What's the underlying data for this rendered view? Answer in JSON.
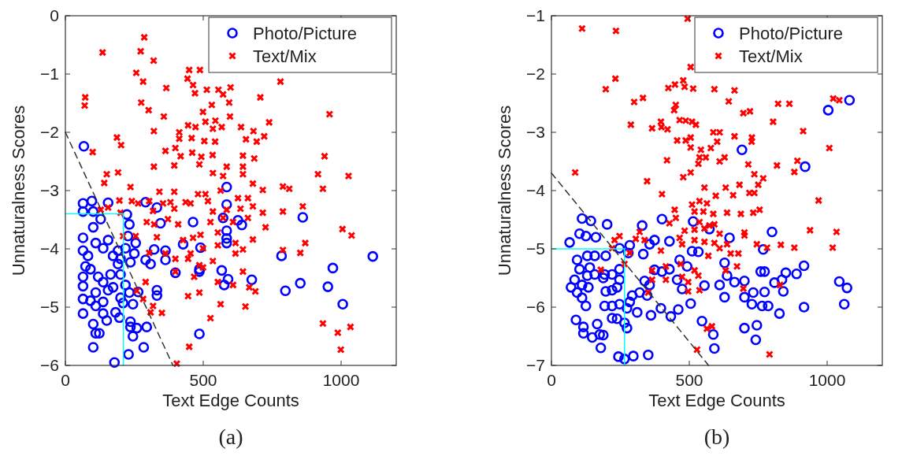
{
  "chart_data": [
    {
      "type": "scatter",
      "xlabel": "Text Edge Counts",
      "ylabel": "Unnaturalness Scores",
      "xlim": [
        0,
        1200
      ],
      "ylim": [
        -6,
        0
      ],
      "xticks": [
        0,
        500,
        1000
      ],
      "yticks": [
        -6,
        -5,
        -4,
        -3,
        -2,
        -1,
        0
      ],
      "legend": "top right",
      "annotations": [
        "(a)"
      ],
      "series": [
        {
          "name": "Photo/Picture",
          "color": "#0000ff",
          "marker": "circle",
          "x": [
            67,
            64,
            96,
            155,
            64,
            101,
            128,
            223,
            232,
            291,
            332,
            345,
            463,
            585,
            585,
            572,
            626,
            640,
            585,
            585,
            585,
            427,
            490,
            322,
            363,
            363,
            291,
            309,
            399,
            486,
            486,
            567,
            590,
            576,
            676,
            784,
            861,
            1115,
            970,
            852,
            798,
            952,
            1006,
            486,
            332,
            332,
            264,
            245,
            232,
            218,
            64,
            64,
            64,
            64,
            64,
            64,
            101,
            110,
            82,
            137,
            155,
            173,
            191,
            191,
            200,
            164,
            137,
            110,
            91,
            110,
            137,
            150,
            182,
            196,
            101,
            110,
            123,
            101,
            178,
            229,
            284,
            236,
            236,
            259,
            295,
            245,
            137,
            209,
            200,
            255,
            250,
            236,
            200,
            155,
            173,
            91,
            119,
            73,
            218,
            227
          ],
          "values": [
            -2.24,
            -3.22,
            -3.18,
            -3.21,
            -3.36,
            -3.36,
            -3.49,
            -3.41,
            -3.58,
            -3.2,
            -3.29,
            -3.56,
            -3.54,
            -2.94,
            -3.24,
            -3.47,
            -3.51,
            -3.59,
            -3.69,
            -3.82,
            -3.9,
            -3.92,
            -3.98,
            -4.01,
            -4.03,
            -4.19,
            -4.19,
            -4.26,
            -4.41,
            -4.35,
            -4.39,
            -4.37,
            -4.52,
            -4.62,
            -4.53,
            -4.12,
            -3.46,
            -4.13,
            -4.33,
            -4.59,
            -4.72,
            -4.65,
            -4.95,
            -5.46,
            -4.71,
            -4.8,
            -4.74,
            -4.95,
            -4.75,
            -4.62,
            -3.81,
            -4.03,
            -4.48,
            -4.64,
            -4.86,
            -5.11,
            -3.63,
            -3.9,
            -4.12,
            -3.99,
            -3.85,
            -4.12,
            -4.03,
            -4.26,
            -4.44,
            -4.44,
            -4.57,
            -4.75,
            -4.89,
            -4.98,
            -5.11,
            -5.23,
            -5.09,
            -5.18,
            -5.29,
            -5.45,
            -5.45,
            -5.69,
            -5.95,
            -5.81,
            -5.69,
            -5.25,
            -5.34,
            -5.36,
            -5.34,
            -5.5,
            -4.91,
            -4.93,
            -4.84,
            -3.9,
            -4.08,
            -4.23,
            -4.17,
            -4.71,
            -4.66,
            -4.35,
            -4.48,
            -4.3,
            -3.99,
            -3.78
          ]
        },
        {
          "name": "Text/Mix",
          "color": "#ff0000",
          "marker": "cross",
          "x": [
            286,
            135,
            273,
            320,
            257,
            282,
            449,
            488,
            443,
            463,
            470,
            513,
            555,
            572,
            599,
            366,
            72,
            70,
            275,
            302,
            357,
            499,
            531,
            594,
            597,
            707,
            780,
            958,
            739,
            321,
            413,
            445,
            472,
            508,
            535,
            544,
            567,
            637,
            682,
            721,
            655,
            694,
            187,
            202,
            99,
            413,
            458,
            504,
            543,
            363,
            399,
            418,
            460,
            493,
            534,
            644,
            685,
            940,
            321,
            395,
            486,
            585,
            644,
            150,
            191,
            141,
            236,
            196,
            241,
            264,
            128,
            155,
            200,
            304,
            341,
            395,
            318,
            354,
            381,
            395,
            295,
            322,
            372,
            409,
            436,
            454,
            481,
            508,
            517,
            535,
            563,
            572,
            535,
            626,
            644,
            680,
            716,
            662,
            680,
            716,
            662,
            726,
            789,
            812,
            789,
            916,
            934,
            1027,
            861,
            1005,
            1038,
            870,
            789,
            852,
            680,
            644,
            617,
            617,
            553,
            535,
            490,
            499,
            463,
            454,
            427,
            399,
            363,
            332,
            304,
            209,
            255,
            445,
            486,
            499,
            399,
            467,
            291,
            259,
            282,
            318,
            309,
            350,
            445,
            486,
            553,
            608,
            644,
            667,
            689,
            563,
            653,
            526,
            449,
            404,
            934,
            988,
            1034,
            999,
            572,
            608,
            635,
            526,
            553,
            585
          ],
          "values": [
            -0.37,
            -0.63,
            -0.61,
            -0.77,
            -0.98,
            -1.13,
            -0.93,
            -0.93,
            -1.08,
            -1.19,
            -1.33,
            -1.27,
            -1.27,
            -1.35,
            -1.23,
            -1.24,
            -1.4,
            -1.54,
            -1.49,
            -1.62,
            -1.73,
            -1.65,
            -1.53,
            -1.49,
            -1.73,
            -1.4,
            -1.13,
            -1.69,
            -1.83,
            -1.98,
            -2,
            -1.88,
            -1.91,
            -1.82,
            -1.94,
            -1.8,
            -1.91,
            -1.91,
            -1.98,
            -2.07,
            -2.12,
            -2.16,
            -2.09,
            -2.22,
            -2.34,
            -2.11,
            -2.1,
            -2.15,
            -2.16,
            -2.32,
            -2.27,
            -2.41,
            -2.35,
            -2.42,
            -2.39,
            -2.4,
            -2.45,
            -2.41,
            -2.59,
            -2.57,
            -2.55,
            -2.59,
            -2.59,
            -2.72,
            -2.69,
            -2.87,
            -2.94,
            -3.17,
            -3.18,
            -3.22,
            -3.33,
            -3.29,
            -3.38,
            -3.18,
            -3.02,
            -3.02,
            -3.35,
            -3.22,
            -3.2,
            -3.31,
            -3.54,
            -3.58,
            -3.49,
            -3.58,
            -3.2,
            -3.22,
            -3.06,
            -3.06,
            -3.18,
            -3.36,
            -3,
            -2.75,
            -2.7,
            -3.13,
            -2.72,
            -2.88,
            -2.99,
            -3.13,
            -3.27,
            -3.38,
            -3.47,
            -3.63,
            -2.93,
            -2.97,
            -3.36,
            -2.72,
            -2.97,
            -2.75,
            -3.27,
            -3.66,
            -3.77,
            -3.9,
            -4.02,
            -4.07,
            -3.84,
            -4.01,
            -3.9,
            -4.08,
            -3.94,
            -4.21,
            -3.76,
            -3.99,
            -3.81,
            -4.08,
            -3.85,
            -4.17,
            -4.08,
            -3.8,
            -4.07,
            -3.78,
            -3.78,
            -4.17,
            -4.28,
            -4.32,
            -4.39,
            -4.48,
            -4.57,
            -4.72,
            -4.86,
            -4.98,
            -5.09,
            -5.1,
            -4.81,
            -4.75,
            -4.57,
            -4.62,
            -4.39,
            -4.66,
            -4.73,
            -4.95,
            -4.99,
            -5.19,
            -5.68,
            -5.97,
            -5.28,
            -5.44,
            -5.34,
            -5.73,
            -3.47,
            -3.54,
            -3.31,
            -3.54,
            -3.72,
            -3.33
          ]
        },
        {
          "type": "line",
          "color": "#00ffff",
          "line_style": "solid",
          "marker": "none",
          "x": [
            0,
            210,
            210
          ],
          "values": [
            -3.4,
            -3.4,
            -6
          ]
        },
        {
          "type": "line",
          "color": "#333333",
          "line_style": "dashed",
          "marker": "none",
          "x": [
            0,
            390
          ],
          "values": [
            -2,
            -6
          ]
        }
      ]
    },
    {
      "type": "scatter",
      "xlabel": "Text Edge Counts",
      "ylabel": "Unnaturalness Scores",
      "xlim": [
        0,
        1200
      ],
      "ylim": [
        -7,
        -1
      ],
      "xticks": [
        0,
        500,
        1000
      ],
      "yticks": [
        -7,
        -6,
        -5,
        -4,
        -3,
        -2,
        -1
      ],
      "legend": "top right",
      "annotations": [
        "(b)"
      ],
      "series": [
        {
          "name": "Photo/Picture",
          "color": "#0000ff",
          "marker": "circle",
          "x": [
            691,
            1004,
            1081,
            920,
            111,
            143,
            202,
            161,
            102,
            125,
            66,
            329,
            401,
            514,
            247,
            284,
            279,
            333,
            356,
            374,
            428,
            510,
            533,
            573,
            646,
            768,
            800,
            465,
            492,
            628,
            637,
            664,
            700,
            759,
            773,
            850,
            889,
            916,
            809,
            836,
            841,
            1044,
            1072,
            1062,
            916,
            827,
            764,
            786,
            727,
            773,
            732,
            700,
            610,
            628,
            555,
            505,
            474,
            456,
            428,
            401,
            374,
            338,
            356,
            347,
            320,
            293,
            284,
            311,
            274,
            247,
            220,
            193,
            197,
            220,
            238,
            188,
            157,
            130,
            139,
            102,
            93,
            84,
            93,
            71,
            111,
            125,
            89,
            116,
            116,
            148,
            175,
            188,
            179,
            166,
            220,
            238,
            265,
            274,
            243,
            265,
            297,
            351,
            361,
            397,
            433,
            460,
            546,
            587,
            591,
            700,
            745,
            741,
            157,
            130,
            197,
            247,
            111,
            134,
            193,
            247,
            220
          ],
          "values": [
            -3.3,
            -2.62,
            -2.45,
            -3.59,
            -4.48,
            -4.52,
            -4.58,
            -4.8,
            -4.74,
            -4.78,
            -4.89,
            -4.6,
            -4.49,
            -4.53,
            -4.99,
            -4.94,
            -5.07,
            -5.09,
            -4.92,
            -4.85,
            -4.87,
            -5.04,
            -5.05,
            -4.66,
            -4.81,
            -5.01,
            -4.71,
            -5.19,
            -5.3,
            -5.24,
            -5.46,
            -5.57,
            -5.55,
            -5.39,
            -5.39,
            -5.41,
            -5.43,
            -5.29,
            -5.58,
            -5.53,
            -5.73,
            -5.56,
            -5.67,
            -5.95,
            -6,
            -6.11,
            -5.98,
            -5.98,
            -5.95,
            -5.74,
            -5.75,
            -5.83,
            -5.62,
            -5.83,
            -5.63,
            -5.94,
            -5.69,
            -5.53,
            -5.35,
            -5.39,
            -5.36,
            -5.55,
            -5.62,
            -5.8,
            -5.75,
            -5.8,
            -5.91,
            -6.09,
            -6.02,
            -5.95,
            -5.98,
            -5.98,
            -5.73,
            -5.71,
            -5.66,
            -5.5,
            -5.44,
            -5.46,
            -5.32,
            -5.35,
            -5.19,
            -5.53,
            -5.75,
            -5.66,
            -5.84,
            -5.98,
            -6.22,
            -6.34,
            -6.45,
            -6.52,
            -6.47,
            -6.48,
            -6.7,
            -6.29,
            -6.19,
            -6.2,
            -6.27,
            -6.36,
            -6.85,
            -6.89,
            -6.84,
            -6.82,
            -6.14,
            -6.02,
            -6.16,
            -6.04,
            -6.24,
            -6.47,
            -6.71,
            -6.36,
            -6.31,
            -6.56,
            -5.12,
            -5.12,
            -5.12,
            -5.35,
            -5.62,
            -5.66,
            -5.44,
            -5.53,
            -5.44
          ]
        },
        {
          "name": "Text/Mix",
          "color": "#ff0000",
          "marker": "cross",
          "x": [
            111,
            234,
            494,
            197,
            232,
            300,
            332,
            424,
            448,
            478,
            483,
            514,
            505,
            591,
            664,
            643,
            451,
            445,
            288,
            365,
            397,
            399,
            421,
            465,
            487,
            510,
            524,
            696,
            720,
            804,
            822,
            863,
            1022,
            1044,
            913,
            1008,
            456,
            487,
            505,
            505,
            542,
            578,
            587,
            610,
            601,
            664,
            727,
            726,
            419,
            537,
            560,
            610,
            628,
            533,
            714,
            818,
            892,
            86,
            347,
            401,
            478,
            505,
            555,
            596,
            632,
            659,
            682,
            718,
            736,
            750,
            768,
            736,
            881,
            969,
            447,
            451,
            428,
            510,
            519,
            537,
            564,
            551,
            587,
            637,
            687,
            732,
            755,
            591,
            483,
            519,
            537,
            555,
            573,
            610,
            465,
            474,
            519,
            555,
            591,
            610,
            637,
            650,
            678,
            700,
            700,
            745,
            782,
            832,
            881,
            938,
            1034,
            1020,
            673,
            247,
            229,
            320,
            306,
            338,
            220,
            284,
            265,
            397,
            179,
            365,
            365,
            415,
            415,
            469,
            474,
            496,
            496,
            519,
            533,
            537,
            569,
            632,
            696,
            829,
            351,
            564,
            582,
            528,
            791
          ],
          "values": [
            -1.22,
            -1.26,
            -1.05,
            -2.26,
            -2.08,
            -2.48,
            -2.41,
            -2.24,
            -2.18,
            -2.11,
            -2.22,
            -2.25,
            -1.88,
            -2.26,
            -2.28,
            -2.47,
            -2.53,
            -2.62,
            -2.87,
            -2.93,
            -2.82,
            -2.91,
            -2.95,
            -2.79,
            -2.8,
            -2.82,
            -2.87,
            -2.67,
            -2.64,
            -2.82,
            -2.51,
            -2.51,
            -2.42,
            -2.45,
            -2.98,
            -3.27,
            -3.14,
            -3.14,
            -3.09,
            -3.26,
            -3.3,
            -3.27,
            -3,
            -3,
            -3.16,
            -3.07,
            -3.09,
            -3.16,
            -3.48,
            -3.43,
            -3.43,
            -3.5,
            -3.43,
            -3.54,
            -3.55,
            -3.57,
            -3.49,
            -3.69,
            -3.84,
            -4.06,
            -3.77,
            -3.69,
            -3.95,
            -4.09,
            -3.95,
            -4.08,
            -3.9,
            -4.04,
            -4.04,
            -3.9,
            -3.79,
            -3.72,
            -3.68,
            -4.17,
            -4.33,
            -4.47,
            -4.56,
            -4.24,
            -4.36,
            -4.18,
            -4.22,
            -4.36,
            -4.4,
            -4.38,
            -4.4,
            -4.38,
            -4.33,
            -4.58,
            -4.69,
            -4.67,
            -4.54,
            -4.65,
            -4.6,
            -4.74,
            -4.81,
            -4.92,
            -4.85,
            -4.88,
            -4.9,
            -4.99,
            -4.92,
            -5.08,
            -5.08,
            -4.72,
            -4.77,
            -4.92,
            -4.98,
            -4.93,
            -4.98,
            -4.68,
            -4.71,
            -4.98,
            -5.3,
            -4.78,
            -4.85,
            -4.71,
            -4.83,
            -4.85,
            -4.99,
            -5.07,
            -5.26,
            -5.03,
            -5.36,
            -5.37,
            -5.53,
            -5.3,
            -5.53,
            -5.26,
            -5.48,
            -5.57,
            -5.73,
            -5.37,
            -5.46,
            -5.71,
            -5.12,
            -5.37,
            -5.68,
            -5.62,
            -5.75,
            -6.37,
            -6.33,
            -6.73,
            -6.81
          ]
        },
        {
          "type": "line",
          "color": "#00ffff",
          "line_style": "solid",
          "marker": "none",
          "x": [
            0,
            265,
            265
          ],
          "values": [
            -5,
            -5,
            -7
          ]
        },
        {
          "type": "line",
          "color": "#333333",
          "line_style": "dashed",
          "marker": "none",
          "x": [
            0,
            570
          ],
          "values": [
            -3.7,
            -7
          ]
        }
      ]
    }
  ]
}
